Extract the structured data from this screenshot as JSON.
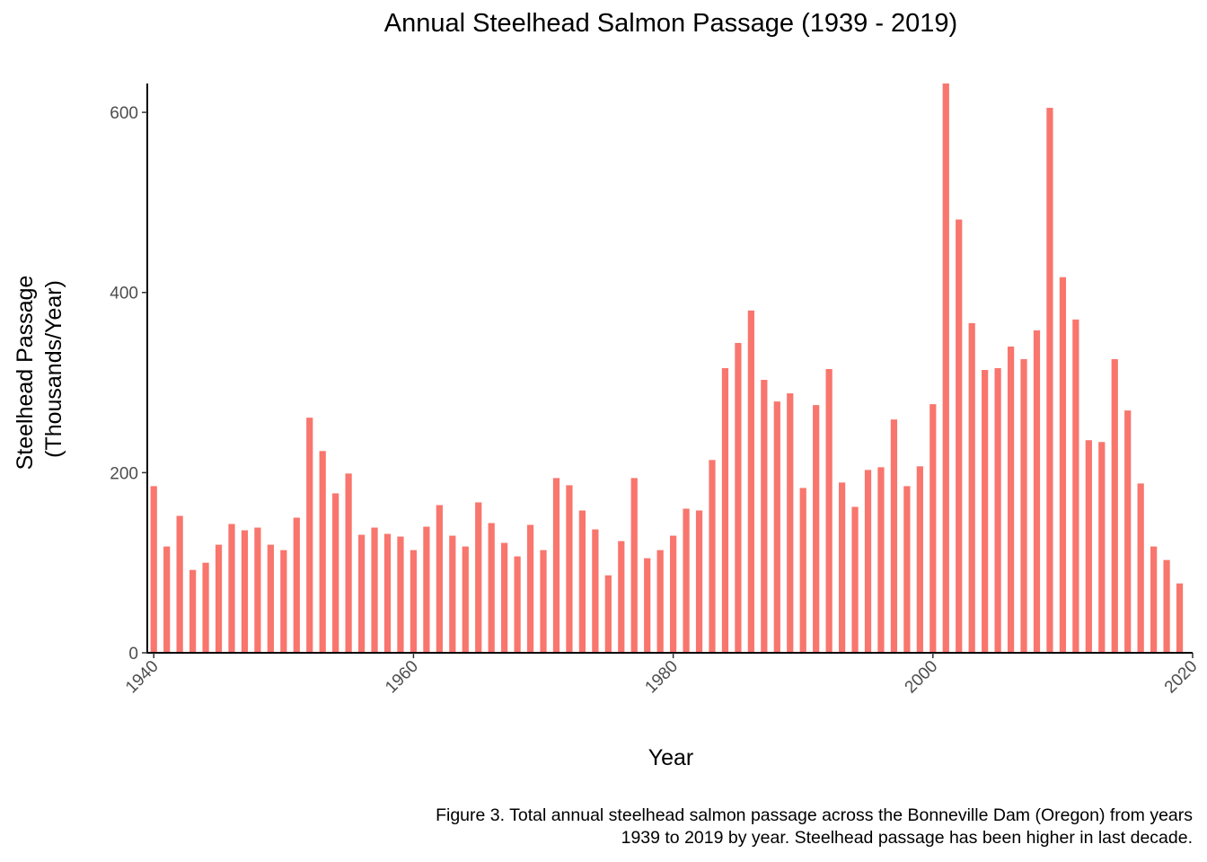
{
  "chart_data": {
    "type": "bar",
    "title": "Annual Steelhead Salmon Passage (1939 - 2019)",
    "xlabel": "Year",
    "ylabel_line1": "Steelhead Passage",
    "ylabel_line2": "(Thousands/Year)",
    "caption_line1": "Figure 3. Total annual steelhead salmon passage across the Bonneville Dam (Oregon) from years",
    "caption_line2": "1939 to 2019 by year. Steelhead passage has been higher in last decade.",
    "bar_color": "#f8766d",
    "xlim": [
      1939.5,
      2020
    ],
    "ylim": [
      0,
      632
    ],
    "xticks": [
      1940,
      1960,
      1980,
      2000,
      2020
    ],
    "yticks": [
      0,
      200,
      400,
      600
    ],
    "grid": false,
    "legend": "none",
    "x": [
      1940,
      1941,
      1942,
      1943,
      1944,
      1945,
      1946,
      1947,
      1948,
      1949,
      1950,
      1951,
      1952,
      1953,
      1954,
      1955,
      1956,
      1957,
      1958,
      1959,
      1960,
      1961,
      1962,
      1963,
      1964,
      1965,
      1966,
      1967,
      1968,
      1969,
      1970,
      1971,
      1972,
      1973,
      1974,
      1975,
      1976,
      1977,
      1978,
      1979,
      1980,
      1981,
      1982,
      1983,
      1984,
      1985,
      1986,
      1987,
      1988,
      1989,
      1990,
      1991,
      1992,
      1993,
      1994,
      1995,
      1996,
      1997,
      1998,
      1999,
      2000,
      2001,
      2002,
      2003,
      2004,
      2005,
      2006,
      2007,
      2008,
      2009,
      2010,
      2011,
      2012,
      2013,
      2014,
      2015,
      2016,
      2017,
      2018,
      2019
    ],
    "values": [
      185,
      118,
      152,
      92,
      100,
      120,
      143,
      136,
      139,
      120,
      114,
      150,
      261,
      224,
      177,
      199,
      131,
      139,
      132,
      129,
      114,
      140,
      164,
      130,
      118,
      167,
      144,
      122,
      107,
      142,
      114,
      194,
      186,
      158,
      137,
      86,
      124,
      194,
      105,
      114,
      130,
      160,
      158,
      214,
      316,
      344,
      380,
      303,
      279,
      288,
      183,
      275,
      315,
      189,
      162,
      203,
      206,
      259,
      185,
      207,
      276,
      632,
      481,
      366,
      314,
      316,
      340,
      326,
      358,
      605,
      417,
      370,
      236,
      234,
      326,
      269,
      188,
      118,
      103,
      77
    ]
  }
}
